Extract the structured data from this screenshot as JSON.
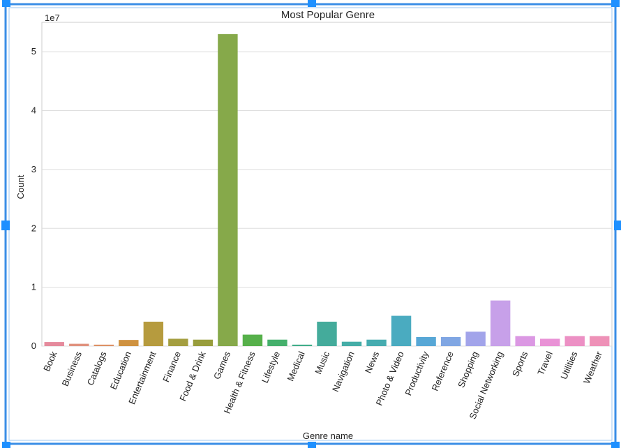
{
  "chart_data": {
    "type": "bar",
    "title": "Most Popular Genre",
    "xlabel": "Genre name",
    "ylabel": "Count",
    "y_offset_label": "1e7",
    "ylim": [
      0,
      55000000
    ],
    "yticks": [
      0,
      10000000,
      20000000,
      30000000,
      40000000,
      50000000
    ],
    "ytick_labels": [
      "0",
      "1",
      "2",
      "3",
      "4",
      "5"
    ],
    "grid": true,
    "categories": [
      "Book",
      "Business",
      "Catalogs",
      "Education",
      "Entertainment",
      "Finance",
      "Food & Drink",
      "Games",
      "Health & Fitness",
      "Lifestyle",
      "Medical",
      "Music",
      "Navigation",
      "News",
      "Photo & Video",
      "Productivity",
      "Reference",
      "Shopping",
      "Social Networking",
      "Sports",
      "Travel",
      "Utilities",
      "Weather"
    ],
    "values": [
      700000,
      400000,
      250000,
      1050000,
      4150000,
      1250000,
      1100000,
      53000000,
      1950000,
      1100000,
      250000,
      4150000,
      750000,
      1100000,
      5150000,
      1550000,
      1550000,
      2450000,
      7750000,
      1700000,
      1250000,
      1700000,
      1700000
    ],
    "colors": [
      "#e58a9c",
      "#e0927e",
      "#dd9165",
      "#cf9240",
      "#b69b3e",
      "#a49e40",
      "#989d3c",
      "#86a94a",
      "#56b04a",
      "#45b06c",
      "#41ad8a",
      "#44ab9b",
      "#45ada7",
      "#46acb0",
      "#4aabc0",
      "#57a7d6",
      "#80a6e3",
      "#a2a4ea",
      "#c7a0e9",
      "#db98e3",
      "#e992d6",
      "#ec90c4",
      "#ee91b7"
    ]
  }
}
